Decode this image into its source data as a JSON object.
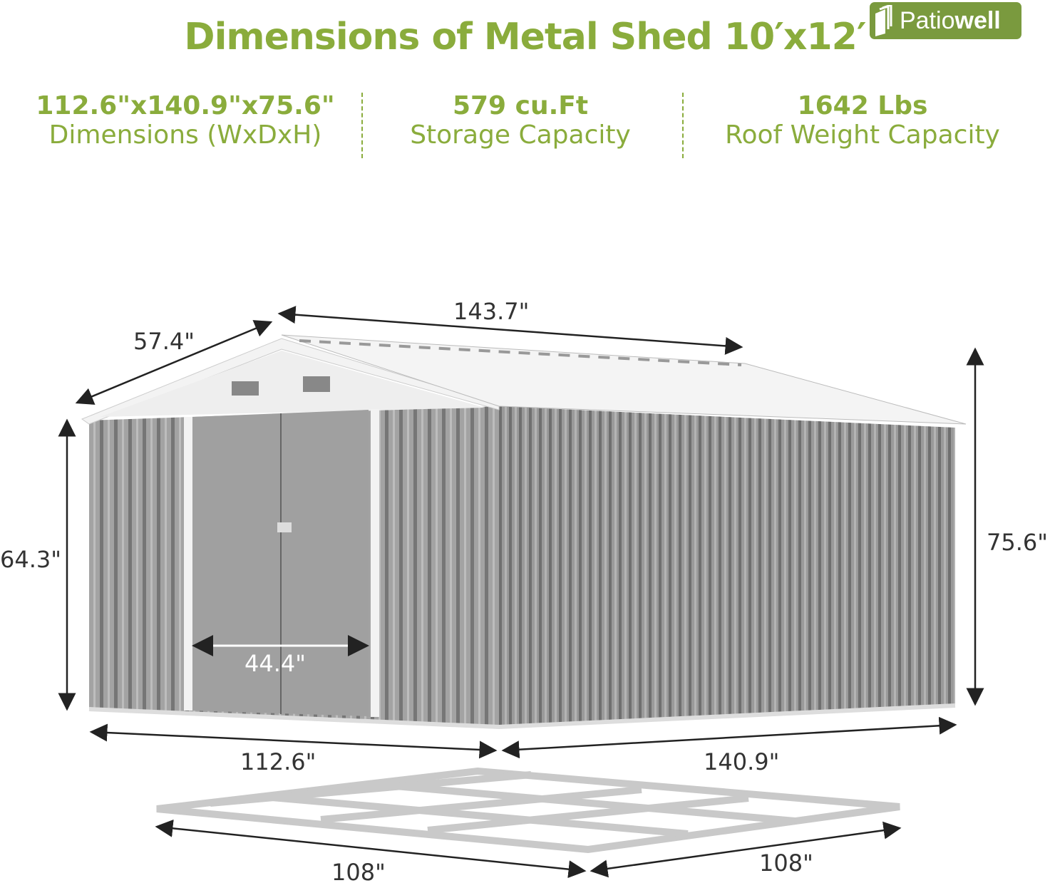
{
  "title": "Dimensions of Metal Shed 10′x12′",
  "brand": "Patiowell",
  "brand_color": "#7a9a3e",
  "accent_color": "#8aac3c",
  "specs": [
    {
      "value": "112.6\"x140.9\"x75.6\"",
      "label": "Dimensions (WxDxH)"
    },
    {
      "value": "579 cu.Ft",
      "label": "Storage Capacity"
    },
    {
      "value": "1642 Lbs",
      "label": "Roof Weight Capacity"
    }
  ],
  "dimensions": {
    "roof_slope": "57.4\"",
    "roof_length": "143.7\"",
    "wall_height": "64.3\"",
    "peak_height": "75.6\"",
    "door_width": "44.4\"",
    "front_width": "112.6\"",
    "side_depth": "140.9\"",
    "base_width": "108\"",
    "base_depth": "108\""
  }
}
